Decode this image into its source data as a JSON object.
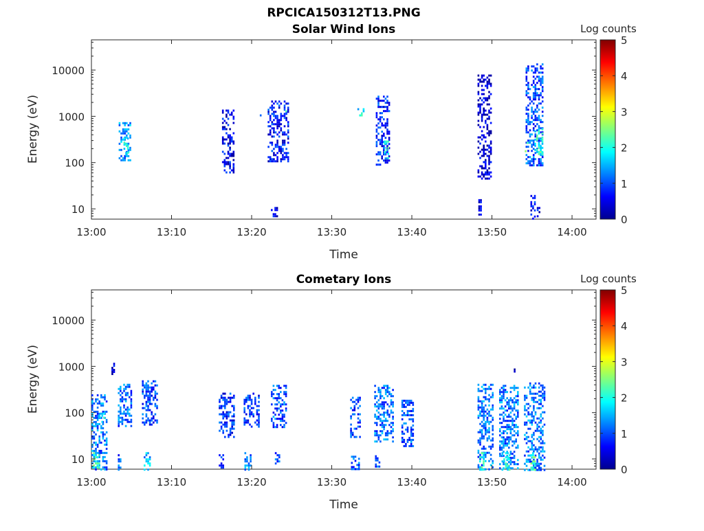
{
  "figure": {
    "filename_title": "RPCICA150312T13.PNG"
  },
  "chart_data": [
    {
      "type": "heatmap",
      "title": "Solar Wind Ions",
      "xlabel": "Time",
      "ylabel": "Energy (eV)",
      "x_range_minutes": [
        0,
        63
      ],
      "x_ticks": [
        {
          "value": 0,
          "label": "13:00"
        },
        {
          "value": 10,
          "label": "13:10"
        },
        {
          "value": 20,
          "label": "13:20"
        },
        {
          "value": 30,
          "label": "13:30"
        },
        {
          "value": 40,
          "label": "13:40"
        },
        {
          "value": 50,
          "label": "13:50"
        },
        {
          "value": 60,
          "label": "14:00"
        }
      ],
      "y_scale": "log",
      "y_range": [
        6,
        45000
      ],
      "y_ticks": [
        {
          "value": 10,
          "label": "10"
        },
        {
          "value": 100,
          "label": "100"
        },
        {
          "value": 1000,
          "label": "1000"
        },
        {
          "value": 10000,
          "label": "10000"
        }
      ],
      "colorbar": {
        "label": "Log counts",
        "min": 0,
        "max": 5,
        "ticks": [
          "0",
          "1",
          "2",
          "3",
          "4",
          "5"
        ],
        "colormap": "jet"
      },
      "clusters": [
        {
          "t": [
            3.4,
            4.8
          ],
          "e": [
            110,
            750
          ],
          "level": 1.3
        },
        {
          "t": [
            4.0,
            4.6
          ],
          "e": [
            150,
            350
          ],
          "level": 2.0
        },
        {
          "t": [
            16.3,
            17.8
          ],
          "e": [
            60,
            1400
          ],
          "level": 0.6
        },
        {
          "t": [
            20.8,
            21.2
          ],
          "e": [
            1100,
            1500
          ],
          "level": 1.0
        },
        {
          "t": [
            22.0,
            24.6
          ],
          "e": [
            110,
            2200
          ],
          "level": 0.7
        },
        {
          "t": [
            24.2,
            24.6
          ],
          "e": [
            1100,
            1500
          ],
          "level": 1.8
        },
        {
          "t": [
            22.4,
            23.2
          ],
          "e": [
            7,
            11
          ],
          "level": 0.5
        },
        {
          "t": [
            33.2,
            34.0
          ],
          "e": [
            1100,
            1500
          ],
          "level": 1.8
        },
        {
          "t": [
            35.5,
            37.2
          ],
          "e": [
            90,
            2800
          ],
          "level": 0.8
        },
        {
          "t": [
            36.5,
            37.0
          ],
          "e": [
            130,
            300
          ],
          "level": 2.0
        },
        {
          "t": [
            36.8,
            37.0
          ],
          "e": [
            1200,
            1600
          ],
          "level": 2.0
        },
        {
          "t": [
            48.2,
            49.9
          ],
          "e": [
            45,
            8000
          ],
          "level": 0.4
        },
        {
          "t": [
            48.3,
            48.7
          ],
          "e": [
            7,
            18
          ],
          "level": 0.6
        },
        {
          "t": [
            54.2,
            56.4
          ],
          "e": [
            90,
            14000
          ],
          "level": 1.0
        },
        {
          "t": [
            55.3,
            56.3
          ],
          "e": [
            160,
            550
          ],
          "level": 2.0
        },
        {
          "t": [
            54.1,
            54.4
          ],
          "e": [
            180,
            280
          ],
          "level": 2.4
        },
        {
          "t": [
            54.8,
            55.3
          ],
          "e": [
            6,
            20
          ],
          "level": 0.7
        },
        {
          "t": [
            55.6,
            55.9
          ],
          "e": [
            7,
            11
          ],
          "level": 0.5
        }
      ]
    },
    {
      "type": "heatmap",
      "title": "Cometary Ions",
      "xlabel": "Time",
      "ylabel": "Energy (eV)",
      "x_range_minutes": [
        0,
        63
      ],
      "x_ticks": [
        {
          "value": 0,
          "label": "13:00"
        },
        {
          "value": 10,
          "label": "13:10"
        },
        {
          "value": 20,
          "label": "13:20"
        },
        {
          "value": 30,
          "label": "13:30"
        },
        {
          "value": 40,
          "label": "13:40"
        },
        {
          "value": 50,
          "label": "13:50"
        },
        {
          "value": 60,
          "label": "14:00"
        }
      ],
      "y_scale": "log",
      "y_range": [
        6,
        45000
      ],
      "y_ticks": [
        {
          "value": 10,
          "label": "10"
        },
        {
          "value": 100,
          "label": "100"
        },
        {
          "value": 1000,
          "label": "1000"
        },
        {
          "value": 10000,
          "label": "10000"
        }
      ],
      "colorbar": {
        "label": "Log counts",
        "min": 0,
        "max": 5,
        "ticks": [
          "0",
          "1",
          "2",
          "3",
          "4",
          "5"
        ],
        "colormap": "jet"
      },
      "clusters": [
        {
          "t": [
            0.0,
            1.8
          ],
          "e": [
            6,
            250
          ],
          "level": 1.2
        },
        {
          "t": [
            0.2,
            0.9
          ],
          "e": [
            6,
            14
          ],
          "level": 2.2
        },
        {
          "t": [
            0.8,
            1.6
          ],
          "e": [
            60,
            100
          ],
          "level": 1.8
        },
        {
          "t": [
            2.5,
            2.8
          ],
          "e": [
            700,
            1200
          ],
          "level": 0.4
        },
        {
          "t": [
            3.3,
            4.9
          ],
          "e": [
            50,
            420
          ],
          "level": 1.1
        },
        {
          "t": [
            3.3,
            3.6
          ],
          "e": [
            6,
            14
          ],
          "level": 1.0
        },
        {
          "t": [
            6.3,
            8.3
          ],
          "e": [
            55,
            500
          ],
          "level": 0.9
        },
        {
          "t": [
            6.3,
            7.3
          ],
          "e": [
            6,
            14
          ],
          "level": 1.5
        },
        {
          "t": [
            15.9,
            17.8
          ],
          "e": [
            30,
            270
          ],
          "level": 0.8
        },
        {
          "t": [
            15.9,
            16.5
          ],
          "e": [
            6,
            14
          ],
          "level": 0.9
        },
        {
          "t": [
            15.5,
            15.7
          ],
          "e": [
            900,
            1100
          ],
          "level": 0.4
        },
        {
          "t": [
            19.0,
            20.9
          ],
          "e": [
            50,
            270
          ],
          "level": 0.9
        },
        {
          "t": [
            19.1,
            19.8
          ],
          "e": [
            6,
            14
          ],
          "level": 1.3
        },
        {
          "t": [
            22.4,
            24.4
          ],
          "e": [
            50,
            400
          ],
          "level": 1.0
        },
        {
          "t": [
            22.9,
            23.4
          ],
          "e": [
            8,
            14
          ],
          "level": 1.0
        },
        {
          "t": [
            32.3,
            33.6
          ],
          "e": [
            30,
            220
          ],
          "level": 0.9
        },
        {
          "t": [
            32.4,
            33.5
          ],
          "e": [
            6,
            13
          ],
          "level": 1.0
        },
        {
          "t": [
            35.3,
            37.6
          ],
          "e": [
            25,
            400
          ],
          "level": 1.2
        },
        {
          "t": [
            35.4,
            35.9
          ],
          "e": [
            6,
            12
          ],
          "level": 1.0
        },
        {
          "t": [
            38.7,
            40.2
          ],
          "e": [
            18,
            190
          ],
          "level": 1.0
        },
        {
          "t": [
            48.2,
            50.1
          ],
          "e": [
            6,
            420
          ],
          "level": 1.2
        },
        {
          "t": [
            48.4,
            48.9
          ],
          "e": [
            6,
            14
          ],
          "level": 2.0
        },
        {
          "t": [
            50.9,
            53.2
          ],
          "e": [
            6,
            400
          ],
          "level": 1.2
        },
        {
          "t": [
            51.2,
            52.1
          ],
          "e": [
            6,
            14
          ],
          "level": 2.0
        },
        {
          "t": [
            52.5,
            52.8
          ],
          "e": [
            750,
            900
          ],
          "level": 0.4
        },
        {
          "t": [
            54.0,
            56.6
          ],
          "e": [
            6,
            450
          ],
          "level": 1.2
        },
        {
          "t": [
            54.8,
            55.4
          ],
          "e": [
            6,
            14
          ],
          "level": 2.2
        }
      ]
    }
  ]
}
